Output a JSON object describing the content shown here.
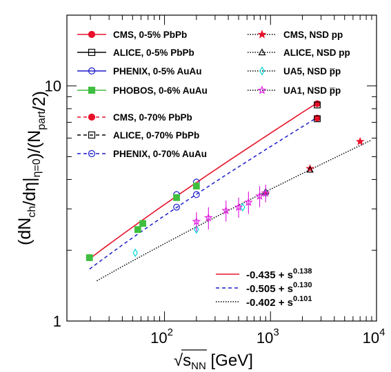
{
  "chart_data": {
    "type": "scatter",
    "xscale": "log",
    "yscale": "log",
    "xlim": [
      12,
      10000
    ],
    "ylim": [
      1,
      20
    ],
    "xlabel": "√s_NN [GeV]",
    "ylabel": "(dN_ch/dη|_η=0)/(N_part/2)",
    "x_ticks": [
      {
        "base": "10",
        "exp": "2"
      },
      {
        "base": "10",
        "exp": "3"
      },
      {
        "base": "10",
        "exp": "4"
      }
    ],
    "y_ticks": [
      "1",
      "10"
    ],
    "legend": {
      "placement": "top",
      "columns": 2
    },
    "series": [
      {
        "name": "CMS, 0-5% PbPb",
        "marker": "circle-filled",
        "color": "#e8102a",
        "line": "solid",
        "points": [
          [
            2760,
            8.4
          ]
        ]
      },
      {
        "name": "ALICE, 0-5% PbPb",
        "marker": "square-open",
        "color": "#000000",
        "line": "solid",
        "points": [
          [
            2760,
            8.3
          ]
        ]
      },
      {
        "name": "PHENIX, 0-5% AuAu",
        "marker": "circle-open",
        "color": "#1a1acc",
        "line": "solid",
        "points": [
          [
            19.6,
            1.86
          ],
          [
            130,
            3.45
          ],
          [
            200,
            3.9
          ]
        ]
      },
      {
        "name": "PHOBOS, 0-6% AuAu",
        "marker": "square-filled",
        "color": "#3fbf3f",
        "line": "solid",
        "points": [
          [
            19.6,
            1.86
          ],
          [
            56,
            2.45
          ],
          [
            62.4,
            2.6
          ],
          [
            130,
            3.35
          ],
          [
            200,
            3.75
          ]
        ]
      },
      {
        "name": "CMS, 0-70% PbPb",
        "marker": "circle-filled",
        "color": "#e8102a",
        "line": "dashed",
        "points": [
          [
            2760,
            7.3
          ]
        ]
      },
      {
        "name": "ALICE, 0-70% PbPb",
        "marker": "square-open",
        "color": "#000000",
        "line": "dashed",
        "points": [
          [
            2760,
            7.25
          ]
        ]
      },
      {
        "name": "PHENIX, 0-70% AuAu",
        "marker": "circle-open",
        "color": "#1a1acc",
        "line": "dashed",
        "points": [
          [
            130,
            3.05
          ],
          [
            200,
            3.45
          ]
        ]
      },
      {
        "name": "CMS, NSD pp",
        "marker": "star-filled",
        "color": "#e8102a",
        "line": "none",
        "points": [
          [
            900,
            3.5
          ],
          [
            2360,
            4.45
          ],
          [
            7000,
            5.8
          ]
        ]
      },
      {
        "name": "ALICE, NSD pp",
        "marker": "triangle-open",
        "color": "#000000",
        "line": "none",
        "points": [
          [
            900,
            3.55
          ],
          [
            2360,
            4.4
          ]
        ]
      },
      {
        "name": "UA5, NSD p̅p",
        "marker": "diamond-open",
        "color": "#00d8d8",
        "line": "none",
        "points": [
          [
            53,
            1.95
          ],
          [
            200,
            2.45
          ],
          [
            546,
            3.05
          ],
          [
            900,
            3.5
          ]
        ]
      },
      {
        "name": "UA1, NSD p̅p",
        "marker": "star-open",
        "color": "#e020e0",
        "line": "none",
        "points": [
          [
            200,
            2.65
          ],
          [
            260,
            2.75
          ],
          [
            380,
            2.95
          ],
          [
            500,
            3.05
          ],
          [
            620,
            3.2
          ],
          [
            790,
            3.4
          ],
          [
            900,
            3.5
          ]
        ],
        "errors": [
          0.25,
          0.3,
          0.3,
          0.3,
          0.35,
          0.35,
          0.3
        ]
      }
    ],
    "fits": [
      {
        "label": "-0.435 + s^0.138",
        "style": "solid",
        "color": "#e8102a",
        "a": -0.435,
        "b": 0.138,
        "x_range": [
          19.6,
          2760
        ]
      },
      {
        "label": "-0.505 + s^0.130",
        "style": "dashed",
        "color": "#1a1acc",
        "a": -0.505,
        "b": 0.13,
        "x_range": [
          19.6,
          2760
        ]
      },
      {
        "label": "-0.402 + s^0.101",
        "style": "dotted",
        "color": "#000000",
        "a": -0.402,
        "b": 0.101,
        "x_range": [
          23,
          9000
        ]
      }
    ]
  }
}
